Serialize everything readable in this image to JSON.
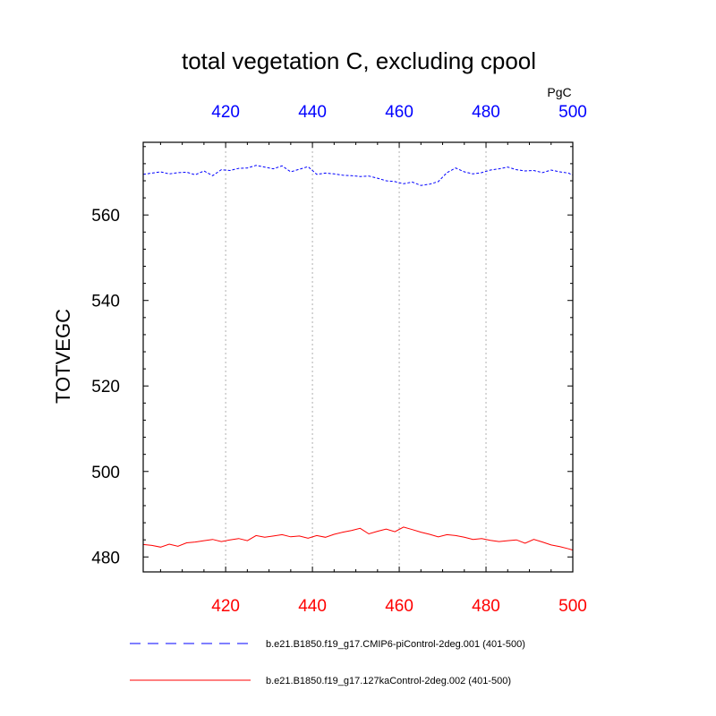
{
  "chart_data": {
    "type": "line",
    "title": "total vegetation C, excluding cpool",
    "ylabel": "TOTVEGC",
    "units": "PgC",
    "xlim": [
      401,
      500
    ],
    "ylim": [
      476.5,
      577
    ],
    "xticks": [
      420,
      440,
      460,
      480,
      500
    ],
    "xtick_labels": [
      "420",
      "440",
      "460",
      "480",
      "500"
    ],
    "yticks": [
      480,
      500,
      520,
      540,
      560
    ],
    "ytick_labels": [
      "480",
      "500",
      "520",
      "540",
      "560"
    ],
    "grid": "vertical dotted at major x ticks",
    "colors": {
      "top_axis": "#0000ff",
      "bottom_axis": "#ff0000"
    },
    "series": [
      {
        "name": "b.e21.B1850.f19_g17.CMIP6-piControl-2deg.001 (401-500)",
        "color": "#0000ff",
        "dash": "dashed",
        "axis": "top",
        "x": [
          401,
          403,
          405,
          407,
          409,
          411,
          413,
          415,
          417,
          419,
          421,
          423,
          425,
          427,
          429,
          431,
          433,
          435,
          437,
          439,
          441,
          443,
          445,
          447,
          449,
          451,
          453,
          455,
          457,
          459,
          461,
          463,
          465,
          467,
          469,
          471,
          473,
          475,
          477,
          479,
          481,
          483,
          485,
          487,
          489,
          491,
          493,
          495,
          497,
          499,
          500
        ],
        "values": [
          569.5,
          569.8,
          570.1,
          569.6,
          569.9,
          570.0,
          569.4,
          570.3,
          569.2,
          570.6,
          570.4,
          570.9,
          571.0,
          571.6,
          571.2,
          570.8,
          571.5,
          570.1,
          570.7,
          571.3,
          569.5,
          569.8,
          569.6,
          569.3,
          569.2,
          569.0,
          569.1,
          568.6,
          568.0,
          567.8,
          567.3,
          567.7,
          566.9,
          567.2,
          567.8,
          569.9,
          571.0,
          570.1,
          569.6,
          569.9,
          570.5,
          570.8,
          571.2,
          570.6,
          570.3,
          570.4,
          569.9,
          570.5,
          570.1,
          569.8,
          569.3
        ]
      },
      {
        "name": "b.e21.B1850.f19_g17.127kaControl-2deg.002 (401-500)",
        "color": "#ff0000",
        "dash": "solid",
        "axis": "bottom",
        "x": [
          401,
          403,
          405,
          407,
          409,
          411,
          413,
          415,
          417,
          419,
          421,
          423,
          425,
          427,
          429,
          431,
          433,
          435,
          437,
          439,
          441,
          443,
          445,
          447,
          449,
          451,
          453,
          455,
          457,
          459,
          461,
          463,
          465,
          467,
          469,
          471,
          473,
          475,
          477,
          479,
          481,
          483,
          485,
          487,
          489,
          491,
          493,
          495,
          497,
          499,
          500
        ],
        "values": [
          482.9,
          482.7,
          482.3,
          483.0,
          482.5,
          483.3,
          483.5,
          483.8,
          484.1,
          483.6,
          484.0,
          484.3,
          483.8,
          485.0,
          484.6,
          484.9,
          485.2,
          484.7,
          484.9,
          484.4,
          485.0,
          484.6,
          485.3,
          485.8,
          486.2,
          486.7,
          485.4,
          486.0,
          486.5,
          485.9,
          487.0,
          486.4,
          485.8,
          485.3,
          484.7,
          485.2,
          485.0,
          484.6,
          484.1,
          484.3,
          483.9,
          483.6,
          483.8,
          484.0,
          483.2,
          484.1,
          483.5,
          482.8,
          482.4,
          481.9,
          481.6
        ]
      }
    ]
  }
}
